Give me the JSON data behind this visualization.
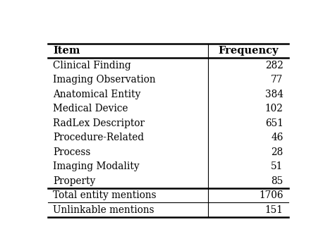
{
  "columns": [
    "Item",
    "Frequency"
  ],
  "rows_smallcaps": [
    [
      "Clinical Finding",
      "282"
    ],
    [
      "Imaging Observation",
      "77"
    ],
    [
      "Anatomical Entity",
      "384"
    ],
    [
      "Medical Device",
      "102"
    ],
    [
      "RadLex Descriptor",
      "651"
    ],
    [
      "Procedure-Related",
      "46"
    ],
    [
      "Process",
      "28"
    ],
    [
      "Imaging Modality",
      "51"
    ],
    [
      "Property",
      "85"
    ]
  ],
  "rows_normal": [
    [
      "Total entity mentions",
      "1706"
    ],
    [
      "Unlinkable mentions",
      "151"
    ]
  ],
  "bg_color": "#ffffff",
  "text_color": "#000000",
  "header_fontsize": 10.5,
  "body_fontsize": 9.8,
  "col_split": 0.67
}
